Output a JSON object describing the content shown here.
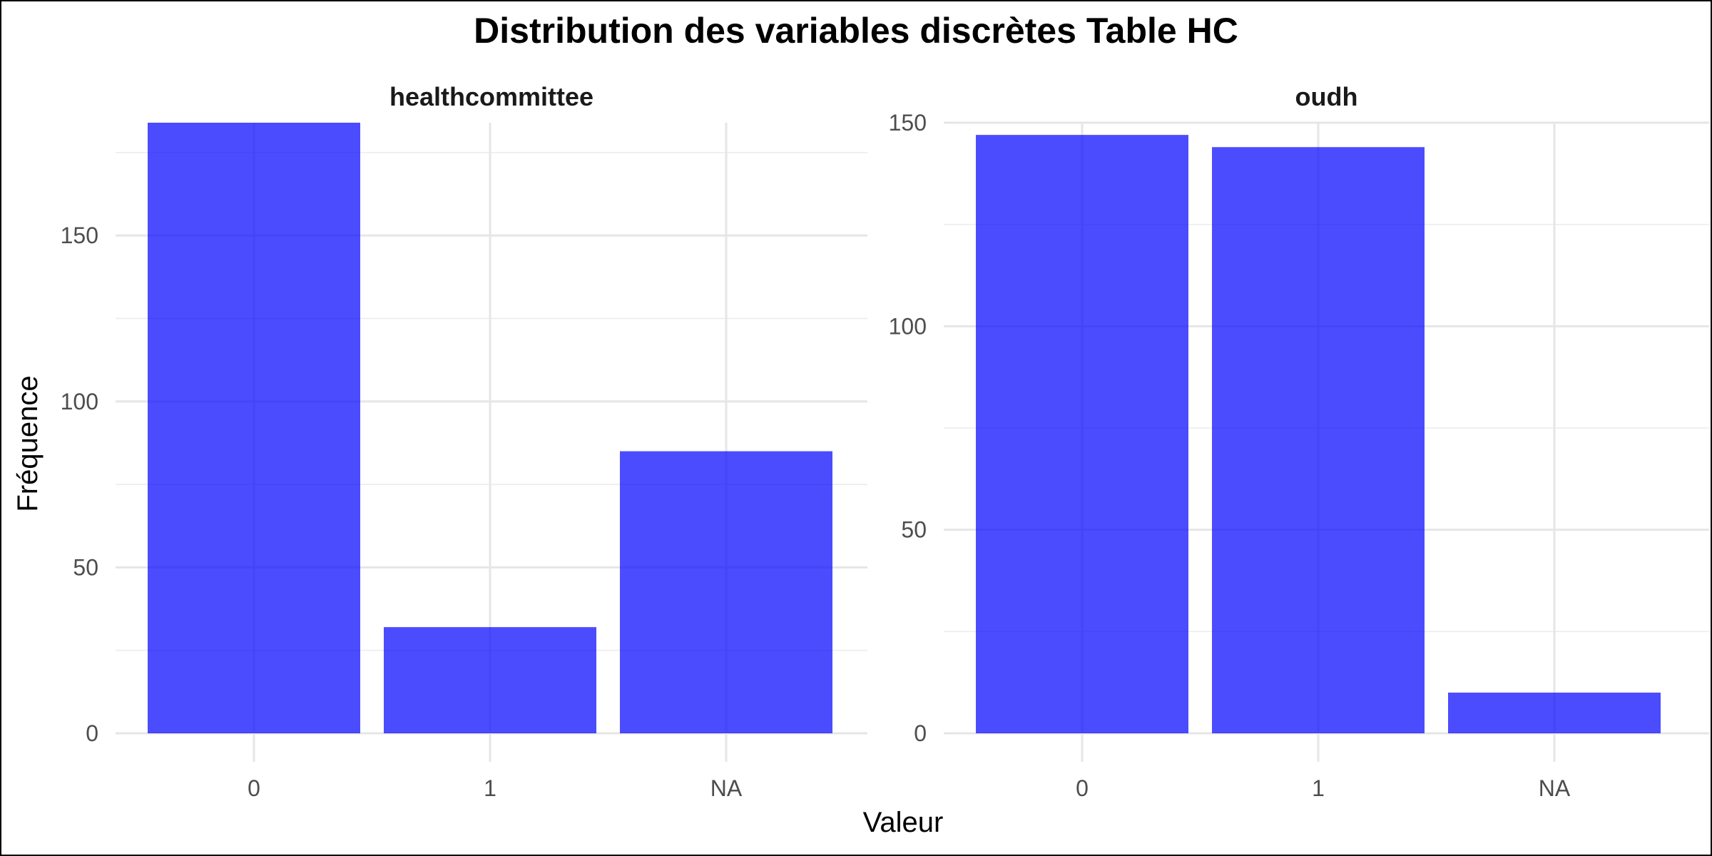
{
  "chart_data": {
    "type": "bar",
    "title": "Distribution des variables discrètes Table HC",
    "xlabel": "Valeur",
    "ylabel": "Fréquence",
    "bar_color": "#0000ff",
    "bar_opacity": 0.7,
    "grid": true,
    "facets": [
      {
        "name": "healthcommittee",
        "categories": [
          "0",
          "1",
          "NA"
        ],
        "values": [
          184,
          32,
          85
        ],
        "ylim": [
          0,
          184
        ],
        "yticks": [
          0,
          50,
          100,
          150
        ]
      },
      {
        "name": "oudh",
        "categories": [
          "0",
          "1",
          "NA"
        ],
        "values": [
          147,
          144,
          10
        ],
        "ylim": [
          0,
          150
        ],
        "yticks": [
          0,
          50,
          100,
          150
        ]
      }
    ]
  }
}
